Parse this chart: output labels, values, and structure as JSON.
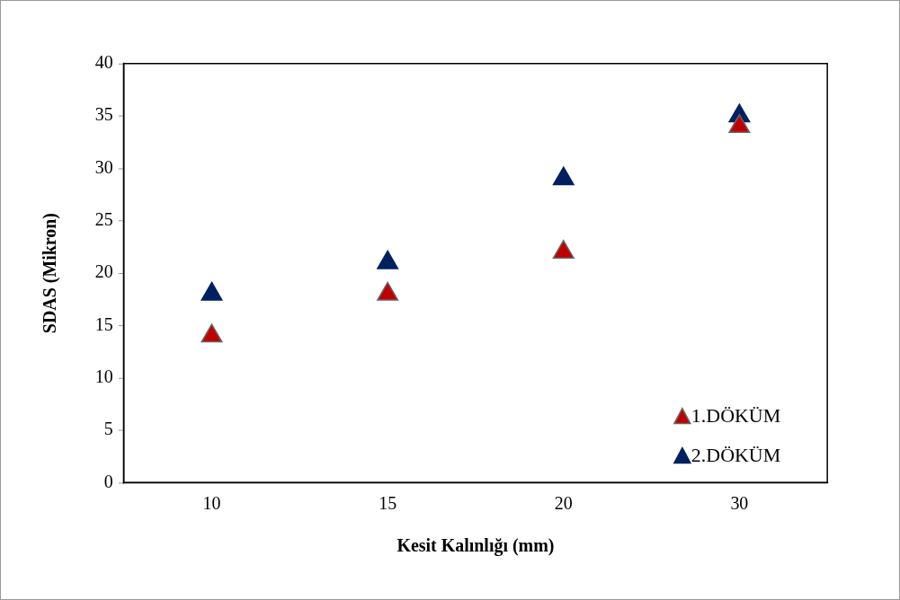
{
  "chart_data": {
    "type": "scatter",
    "xlabel": "Kesit Kalınlığı (mm)",
    "ylabel": "SDAS (Mikron)",
    "categories": [
      "10",
      "15",
      "20",
      "30"
    ],
    "series": [
      {
        "name": "1.DÖKÜM",
        "color": "#c00000",
        "values": [
          14,
          18,
          22,
          34
        ]
      },
      {
        "name": "2.DÖKÜM",
        "color": "#002060",
        "values": [
          18,
          21,
          29,
          35
        ]
      }
    ],
    "ylim": [
      0,
      40
    ],
    "yticks": [
      0,
      5,
      10,
      15,
      20,
      25,
      30,
      35,
      40
    ],
    "grid": false,
    "legend": "bottom right",
    "marker": "triangle"
  }
}
